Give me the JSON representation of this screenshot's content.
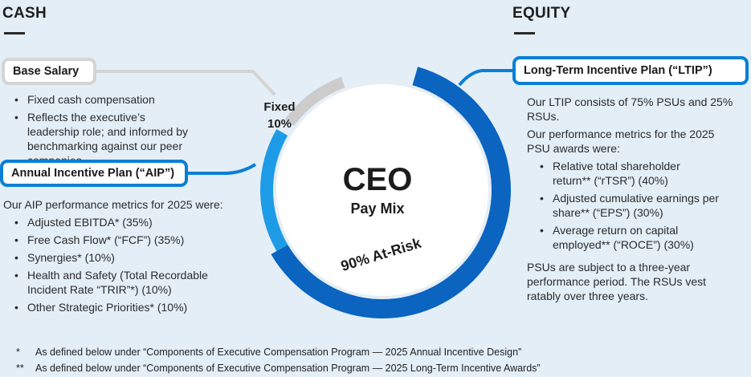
{
  "left": {
    "title": "CASH",
    "base_salary": {
      "title": "Base Salary",
      "bullets": [
        "Fixed cash compensation",
        "Reflects the executive’s leadership role; and informed by benchmarking against our peer companies"
      ]
    },
    "aip": {
      "title": "Annual Incentive Plan (“AIP”)",
      "intro": "Our AIP performance metrics for 2025 were:",
      "bullets": [
        "Adjusted EBITDA* (35%)",
        "Free Cash Flow* (“FCF”) (35%)",
        "Synergies* (10%)",
        "Health and Safety (Total Recordable Incident Rate “TRIR”*) (10%)",
        "Other Strategic Priorities* (10%)"
      ]
    }
  },
  "center": {
    "title": "CEO",
    "subtitle": "Pay Mix",
    "fixed_label": "Fixed",
    "fixed_value": "10%",
    "atrisk_label": "90% At-Risk"
  },
  "right": {
    "title": "EQUITY",
    "ltip": {
      "title": "Long-Term Incentive Plan (“LTIP”)",
      "para1": "Our LTIP consists of 75% PSUs and 25% RSUs.",
      "para2": "Our performance metrics for the 2025 PSU awards were:",
      "bullets": [
        "Relative total shareholder return** (“rTSR”) (40%)",
        "Adjusted cumulative earnings per share** (“EPS”) (30%)",
        "Average return on capital employed** (“ROCE”) (30%)"
      ],
      "para3": "PSUs are subject to a three-year performance period. The RSUs vest ratably over three years."
    }
  },
  "footnotes": [
    {
      "mark": "*",
      "text": "As defined below under “Components of Executive Compensation Program — 2025 Annual Incentive Design”"
    },
    {
      "mark": "**",
      "text": "As defined below under “Components of Executive Compensation Program — 2025 Long-Term Incentive Awards”"
    }
  ],
  "colors": {
    "background": "#e3eef7",
    "dark_blue": "#0a64c0",
    "mid_blue": "#0a7fd6",
    "light_blue": "#1e9be6",
    "grey": "#cccccc"
  }
}
